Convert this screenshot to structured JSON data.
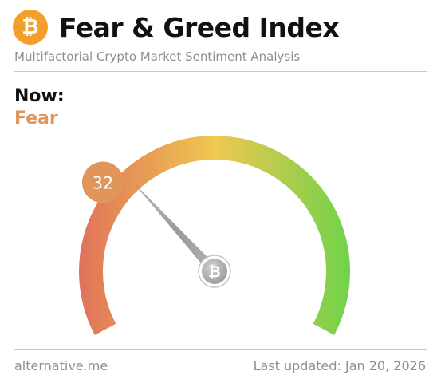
{
  "header": {
    "logo_icon": "bitcoin-icon",
    "logo_glyph": "₿",
    "title": "Fear & Greed Index",
    "subtitle": "Multifactorial Crypto Market Sentiment Analysis"
  },
  "current": {
    "label": "Now:",
    "classification": "Fear",
    "value": "32",
    "value_number": 32,
    "scale_max": 100,
    "color": "#e0955a"
  },
  "gauge": {
    "hub_icon": "bitcoin-icon",
    "hub_glyph": "₿",
    "colors": {
      "fear": "#e0735a",
      "neutral": "#f0c850",
      "greed": "#6fd24a"
    }
  },
  "footer": {
    "source": "alternative.me",
    "updated": "Last updated: Jan 20, 2026"
  },
  "colors": {
    "brand": "#f2a02b",
    "text": "#111111",
    "muted": "#8f8f8f",
    "divider": "#c8c8c8"
  }
}
